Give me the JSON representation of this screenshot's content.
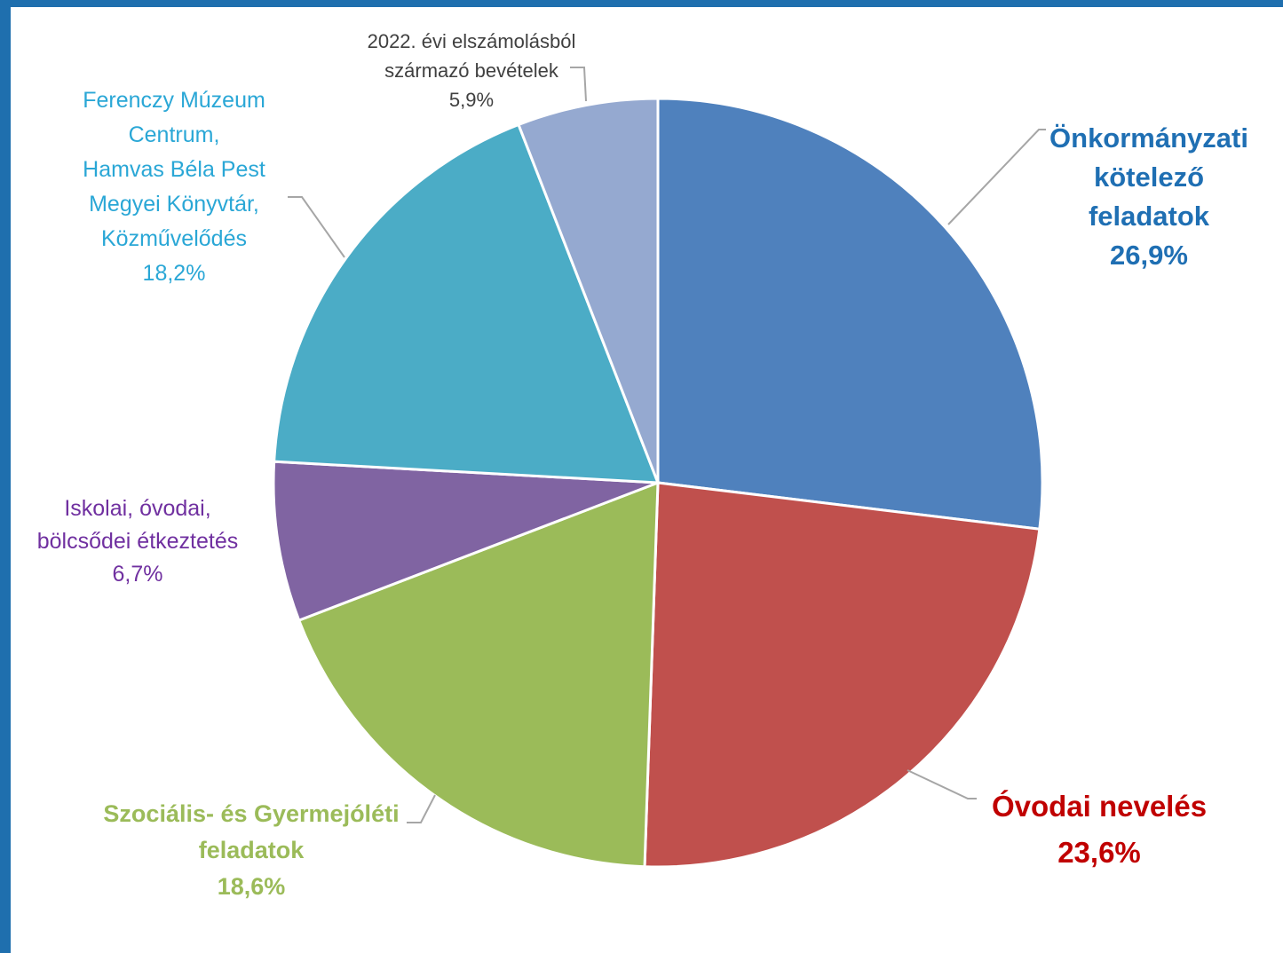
{
  "chart_data": {
    "type": "pie",
    "slices": [
      {
        "name_lines": [
          "Önkormányzati",
          "kötelező",
          "feladatok"
        ],
        "value": 26.9,
        "value_label": "26,9%",
        "color": "#4f81bd",
        "label_color": "#1f6fb3",
        "label_weight": "bold"
      },
      {
        "name_lines": [
          "Óvodai nevelés"
        ],
        "value": 23.6,
        "value_label": "23,6%",
        "color": "#c0504d",
        "label_color": "#c00000",
        "label_weight": "bold"
      },
      {
        "name_lines": [
          "Szociális- és Gyermejóléti",
          "feladatok"
        ],
        "value": 18.6,
        "value_label": "18,6%",
        "color": "#9bbb59",
        "label_color": "#9bbb59",
        "label_weight": "bold"
      },
      {
        "name_lines": [
          "Iskolai, óvodai,",
          "bölcsődei étkeztetés"
        ],
        "value": 6.7,
        "value_label": "6,7%",
        "color": "#8064a2",
        "label_color": "#7030a0",
        "label_weight": "normal"
      },
      {
        "name_lines": [
          "Ferenczy Múzeum",
          "Centrum,",
          "Hamvas Béla Pest",
          "Megyei Könyvtár,",
          "Közművelődés"
        ],
        "value": 18.2,
        "value_label": "18,2%",
        "color": "#4bacc6",
        "label_color": "#2aa7d6",
        "label_weight": "normal"
      },
      {
        "name_lines": [
          "2022. évi elszámolásból",
          "származó bevételek"
        ],
        "value": 5.9,
        "value_label": "5,9%",
        "color": "#95a9d0",
        "label_color": "#404040",
        "label_weight": "normal"
      }
    ],
    "start_angle_deg": 0,
    "direction": "clockwise",
    "legend": "none"
  }
}
